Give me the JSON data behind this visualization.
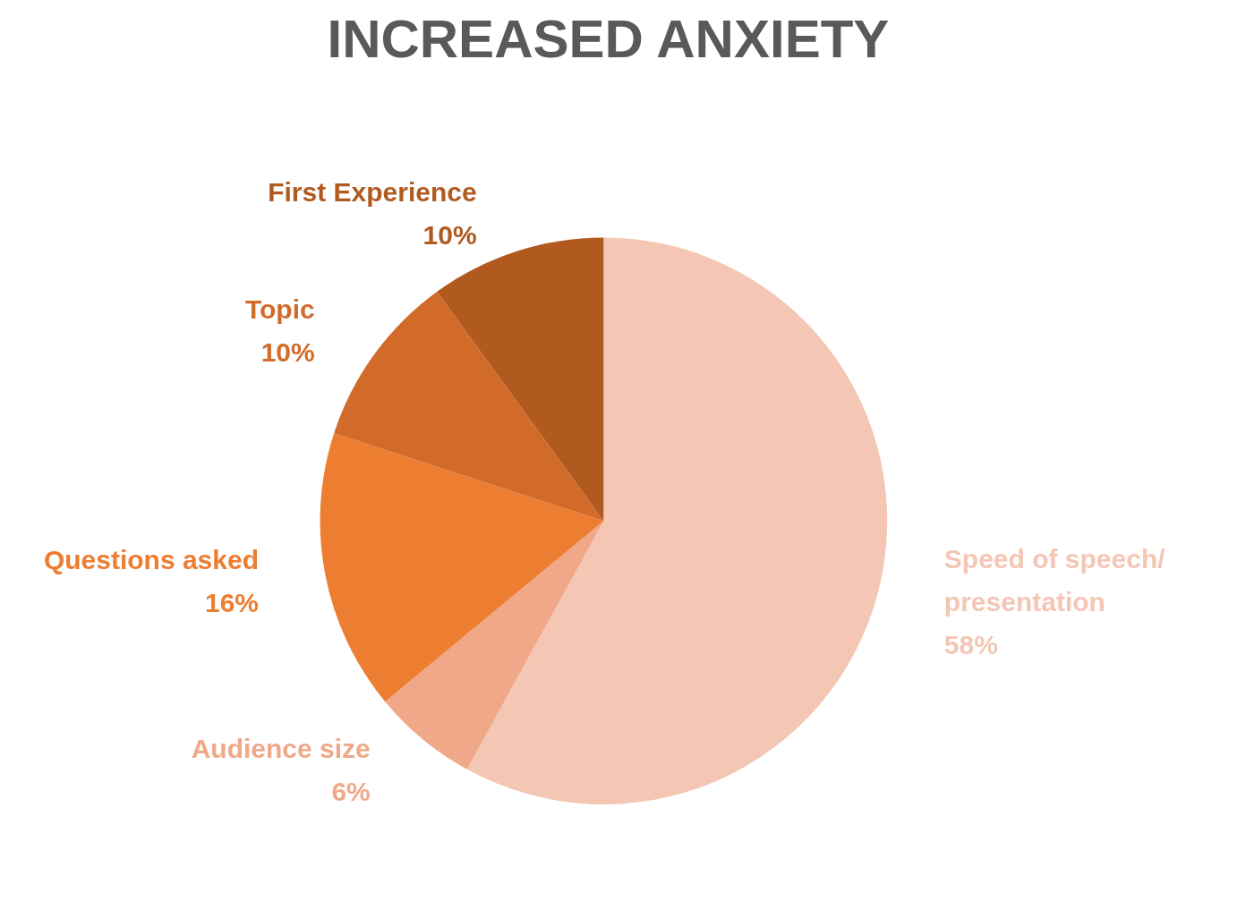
{
  "chart_data": {
    "type": "pie",
    "title": "INCREASED ANXIETY",
    "categories": [
      "Speed of speech/presentation",
      "Audience size",
      "Questions asked",
      "Topic",
      "First Experience"
    ],
    "values": [
      58,
      6,
      16,
      10,
      10
    ],
    "value_labels": [
      "58%",
      "6%",
      "16%",
      "10%",
      "10%"
    ],
    "colors": [
      "#f4c6b4",
      "#f0a888",
      "#ed7d31",
      "#d26b2a",
      "#b05a20"
    ],
    "legend": false
  }
}
